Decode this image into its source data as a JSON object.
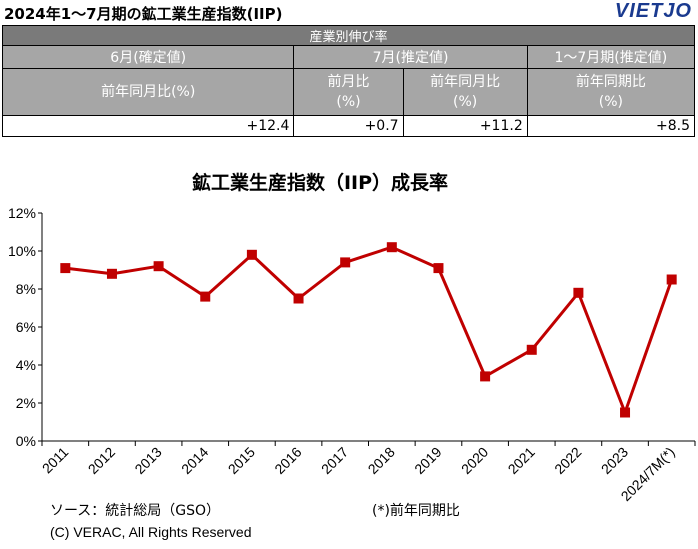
{
  "header": {
    "title": "2024年1～7月期の鉱工業生産指数(IIP)",
    "logo_main": "VIET",
    "logo_tail": "JO"
  },
  "summary_table": {
    "band_label": "産業別伸び率",
    "groups": [
      "6月(確定値)",
      "7月(推定値)",
      "1～7月期(推定値)"
    ],
    "sub_headers": [
      {
        "line1": "前年同月比(%)",
        "line2": ""
      },
      {
        "line1": "前月比",
        "line2": "(%)"
      },
      {
        "line1": "前年同月比",
        "line2": "(%)"
      },
      {
        "line1": "前年同期比",
        "line2": "(%)"
      }
    ],
    "values": [
      "+12.4",
      "+0.7",
      "+11.2",
      "+8.5"
    ]
  },
  "chart_data": {
    "type": "line",
    "title": "鉱工業生産指数（IIP）成長率",
    "xlabel": "",
    "ylabel": "",
    "categories": [
      "2011",
      "2012",
      "2013",
      "2014",
      "2015",
      "2016",
      "2017",
      "2018",
      "2019",
      "2020",
      "2021",
      "2022",
      "2023",
      "2024/7M(*)"
    ],
    "series": [
      {
        "values": [
          9.1,
          8.8,
          9.2,
          7.6,
          9.8,
          7.5,
          9.4,
          10.2,
          9.1,
          3.4,
          4.8,
          7.8,
          1.5,
          8.5
        ]
      }
    ],
    "ylim": [
      0,
      12
    ],
    "y_ticks": [
      "0%",
      "2%",
      "4%",
      "6%",
      "8%",
      "10%",
      "12%"
    ],
    "grid": false,
    "legend": "none",
    "line_color": "#c00000"
  },
  "footer": {
    "source": "ソース：統計総局（GSO）",
    "note": "(*)前年同期比",
    "copyright": "(C) VERAC, All Rights Reserved"
  }
}
